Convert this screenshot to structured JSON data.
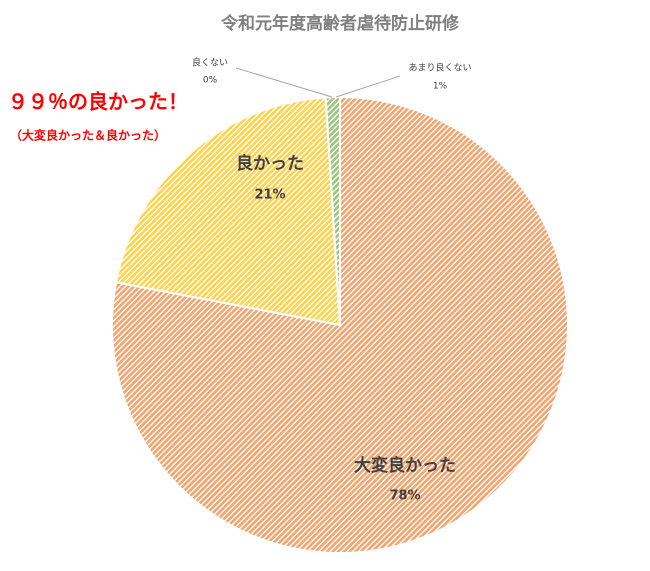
{
  "chart_data": {
    "type": "pie",
    "title": "令和元年度高齢者虐待防止研修",
    "categories": [
      "大変良かった",
      "良かった",
      "あまり良くない",
      "良くない"
    ],
    "values": [
      78,
      21,
      1,
      0
    ],
    "value_labels": [
      "78%",
      "21%",
      "1%",
      "0%"
    ],
    "colors": [
      "#ed7d31",
      "#ffc000",
      "#70ad47",
      "#a5a5a5"
    ],
    "annotations": [
      "９９％の良かった！",
      "（大変良かった＆良かった）"
    ]
  }
}
